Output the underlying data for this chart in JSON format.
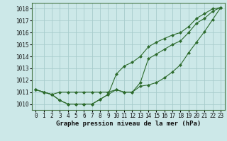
{
  "x": [
    0,
    1,
    2,
    3,
    4,
    5,
    6,
    7,
    8,
    9,
    10,
    11,
    12,
    13,
    14,
    15,
    16,
    17,
    18,
    19,
    20,
    21,
    22,
    23
  ],
  "series1": [
    1011.2,
    1011.0,
    1010.8,
    1010.3,
    1010.0,
    1010.0,
    1010.0,
    1010.0,
    1010.4,
    1010.8,
    1011.2,
    1011.0,
    1011.0,
    1011.5,
    1011.6,
    1011.8,
    1012.2,
    1012.7,
    1013.3,
    1014.3,
    1015.2,
    1016.1,
    1017.1,
    1018.1
  ],
  "series2": [
    1011.2,
    1011.0,
    1010.8,
    1010.3,
    1010.0,
    1010.0,
    1010.0,
    1010.0,
    1010.4,
    1010.8,
    1012.5,
    1013.2,
    1013.5,
    1014.0,
    1014.8,
    1015.2,
    1015.5,
    1015.8,
    1016.0,
    1016.5,
    1017.2,
    1017.6,
    1018.0,
    1018.1
  ],
  "series3": [
    1011.2,
    1011.0,
    1010.8,
    1011.0,
    1011.0,
    1011.0,
    1011.0,
    1011.0,
    1011.0,
    1011.0,
    1011.2,
    1011.0,
    1011.0,
    1011.8,
    1013.8,
    1014.2,
    1014.6,
    1015.0,
    1015.3,
    1016.0,
    1016.8,
    1017.2,
    1017.8,
    1018.1
  ],
  "line_color": "#2d6b2d",
  "bg_color": "#cce8e8",
  "grid_color": "#a8cccc",
  "xlabel": "Graphe pression niveau de la mer (hPa)",
  "ylim": [
    1009.5,
    1018.5
  ],
  "xlim": [
    -0.5,
    23.5
  ],
  "yticks": [
    1010,
    1011,
    1012,
    1013,
    1014,
    1015,
    1016,
    1017,
    1018
  ],
  "xticks": [
    0,
    1,
    2,
    3,
    4,
    5,
    6,
    7,
    8,
    9,
    10,
    11,
    12,
    13,
    14,
    15,
    16,
    17,
    18,
    19,
    20,
    21,
    22,
    23
  ],
  "xlabel_fontsize": 6.5,
  "tick_fontsize": 5.5
}
